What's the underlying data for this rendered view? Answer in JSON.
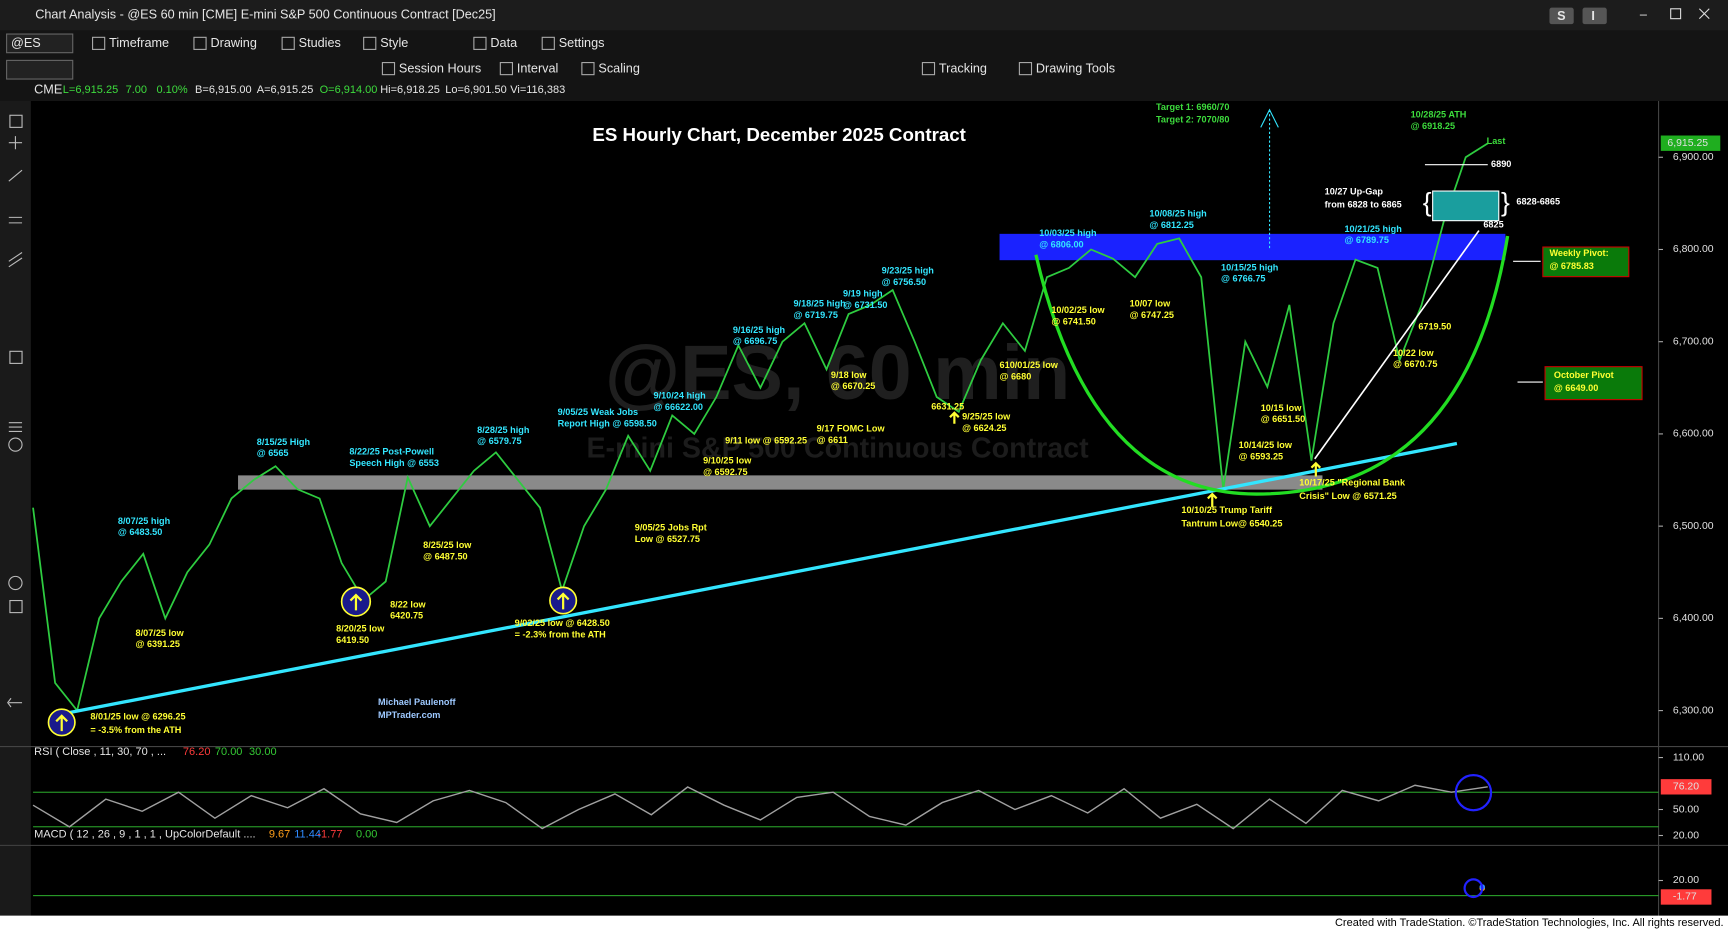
{
  "window": {
    "title": "Chart Analysis - @ES 60 min [CME] E-mini S&P 500 Continuous Contract [Dec25]",
    "buttons": [
      "S",
      "I"
    ]
  },
  "toolbar": {
    "symbol": "@ES",
    "menus": [
      "Timeframe",
      "Drawing",
      "Studies",
      "Style",
      "Data",
      "Settings"
    ],
    "tools": [
      "Session Hours",
      "Interval",
      "Scaling",
      "Tracking",
      "Drawing Tools"
    ]
  },
  "quote": {
    "exchange": "CME",
    "fields": [
      "L=6,915.25",
      "7.00",
      "0.10%",
      "B=6,915.00",
      "A=6,915.25",
      "O=6,914.00",
      "Hi=6,918.25",
      "Lo=6,901.50",
      "Vi=116,383"
    ],
    "field_colors": [
      "#3ddc3d",
      "#3ddc3d",
      "#3ddc3d",
      "#e6e6e6",
      "#e6e6e6",
      "#3ddc3d",
      "#e6e6e6",
      "#e6e6e6",
      "#e6e6e6"
    ]
  },
  "chart": {
    "title": "ES Hourly Chart, December 2025 Contract",
    "watermark": [
      "@ES, 60 min",
      "E-mini S&P 500 Continuous Contract"
    ],
    "ylim": [
      6261,
      6961
    ],
    "yticks": [
      {
        "value": 6300,
        "label": "6,300.00"
      },
      {
        "value": 6400,
        "label": "6,400.00"
      },
      {
        "value": 6500,
        "label": "6,500.00"
      },
      {
        "value": 6600,
        "label": "6,600.00"
      },
      {
        "value": 6700,
        "label": "6,700.00"
      },
      {
        "value": 6800,
        "label": "6,800.00"
      },
      {
        "value": 6900,
        "label": "6,900.00"
      }
    ],
    "last": {
      "value": 6915.25,
      "label": "6,915.25"
    },
    "price": {
      "color": "#2ecc40",
      "values": [
        6520,
        6330,
        6300,
        6400,
        6440,
        6470,
        6400,
        6450,
        6480,
        6530,
        6550,
        6565,
        6540,
        6530,
        6460,
        6420,
        6440,
        6553,
        6500,
        6530,
        6560,
        6580,
        6550,
        6520,
        6430,
        6500,
        6540,
        6598,
        6560,
        6620,
        6600,
        6640,
        6696,
        6650,
        6700,
        6720,
        6670,
        6730,
        6740,
        6756,
        6700,
        6640,
        6624,
        6680,
        6720,
        6690,
        6770,
        6780,
        6800,
        6790,
        6770,
        6806,
        6812,
        6770,
        6540,
        6700,
        6651,
        6740,
        6571,
        6720,
        6789,
        6780,
        6680,
        6740,
        6830,
        6900,
        6915
      ]
    },
    "annotations": [
      {
        "lines": [
          "Target 1: 6960/70",
          "Target 2: 7070/80"
        ],
        "color": "#3ddc3d"
      },
      {
        "lines": [
          "10/28/25 ATH",
          "@ 6918.25"
        ],
        "color": "#3ddc3d"
      },
      {
        "lines": [
          "Last"
        ],
        "color": "#3ddc3d"
      },
      {
        "lines": [
          "6890"
        ],
        "color": "#ffffff"
      },
      {
        "lines": [
          "10/27 Up-Gap",
          "from 6828 to 6865"
        ],
        "color": "#ffffff"
      },
      {
        "lines": [
          "6828-6865"
        ],
        "color": "#ffffff"
      },
      {
        "lines": [
          "6825"
        ],
        "color": "#ffffff"
      },
      {
        "lines": [
          "Weekly Pivot:",
          "@ 6785.83"
        ],
        "color": "#ffff33"
      },
      {
        "lines": [
          "October Pivot",
          "@ 6649.00"
        ],
        "color": "#ffff33"
      },
      {
        "lines": [
          "10/08/25 high",
          "@ 6812.25"
        ],
        "color": "#33e6ff"
      },
      {
        "lines": [
          "10/03/25 high",
          "@ 6806.00"
        ],
        "color": "#33e6ff"
      },
      {
        "lines": [
          "10/21/25 high",
          "@ 6789.75"
        ],
        "color": "#33e6ff"
      },
      {
        "lines": [
          "10/15/25 high",
          "@ 6766.75"
        ],
        "color": "#33e6ff"
      },
      {
        "lines": [
          "10/02/25 low",
          "@ 6741.50"
        ],
        "color": "#ffff33"
      },
      {
        "lines": [
          "10/07 low",
          "@ 6747.25"
        ],
        "color": "#ffff33"
      },
      {
        "lines": [
          "6719.50"
        ],
        "color": "#ffff33"
      },
      {
        "lines": [
          "10/22 low",
          "@ 6670.75"
        ],
        "color": "#ffff33"
      },
      {
        "lines": [
          "610/01/25 low",
          "@ 6680"
        ],
        "color": "#ffff33"
      },
      {
        "lines": [
          "10/15 low",
          "@ 6651.50"
        ],
        "color": "#ffff33"
      },
      {
        "lines": [
          "10/14/25 low",
          "@ 6593.25"
        ],
        "color": "#ffff33"
      },
      {
        "lines": [
          "10/17/25 \"Regional Bank",
          "Crisis\" Low @ 6571.25"
        ],
        "color": "#ffff33"
      },
      {
        "lines": [
          "10/10/25 Trump Tariff",
          "Tantrum Low@ 6540.25"
        ],
        "color": "#ffff33"
      },
      {
        "lines": [
          "9/23/25 high",
          "@ 6756.50"
        ],
        "color": "#33e6ff"
      },
      {
        "lines": [
          "9/19 high",
          "@ 6731.50"
        ],
        "color": "#33e6ff"
      },
      {
        "lines": [
          "9/18/25 high",
          "@ 6719.75"
        ],
        "color": "#33e6ff"
      },
      {
        "lines": [
          "9/16/25 high",
          "@ 6696.75"
        ],
        "color": "#33e6ff"
      },
      {
        "lines": [
          "9/18 low",
          "@ 6670.25"
        ],
        "color": "#ffff33"
      },
      {
        "lines": [
          "6631.25"
        ],
        "color": "#ffff33"
      },
      {
        "lines": [
          "9/25/25 low",
          "@ 6624.25"
        ],
        "color": "#ffff33"
      },
      {
        "lines": [
          "9/10/24 high",
          "@ 66622.00"
        ],
        "color": "#33e6ff"
      },
      {
        "lines": [
          "9/05/25 Weak Jobs",
          "Report High @ 6598.50"
        ],
        "color": "#33e6ff"
      },
      {
        "lines": [
          "9/11 low @ 6592.25"
        ],
        "color": "#ffff33"
      },
      {
        "lines": [
          "9/17 FOMC Low",
          "@ 6611"
        ],
        "color": "#ffff33"
      },
      {
        "lines": [
          "9/10/25 low",
          "@ 6592.75"
        ],
        "color": "#ffff33"
      },
      {
        "lines": [
          "9/05/25 Jobs Rpt",
          "Low @ 6527.75"
        ],
        "color": "#ffff33"
      },
      {
        "lines": [
          "8/28/25 high",
          "@ 6579.75"
        ],
        "color": "#33e6ff"
      },
      {
        "lines": [
          "8/22/25 Post-Powell",
          "Speech High @ 6553"
        ],
        "color": "#33e6ff"
      },
      {
        "lines": [
          "8/15/25 High",
          "@ 6565"
        ],
        "color": "#33e6ff"
      },
      {
        "lines": [
          "8/07/25 high",
          "@ 6483.50"
        ],
        "color": "#33e6ff"
      },
      {
        "lines": [
          "8/25/25 low",
          "@ 6487.50"
        ],
        "color": "#ffff33"
      },
      {
        "lines": [
          "8/22 low",
          "6420.75"
        ],
        "color": "#ffff33"
      },
      {
        "lines": [
          "8/20/25 low",
          "6419.50"
        ],
        "color": "#ffff33"
      },
      {
        "lines": [
          "9/02/25 low @ 6428.50",
          "= -2.3% from the ATH"
        ],
        "color": "#ffff33"
      },
      {
        "lines": [
          "8/07/25 low",
          "@ 6391.25"
        ],
        "color": "#ffff33"
      },
      {
        "lines": [
          "8/01/25 low @ 6296.25",
          "= -3.5% from the ATH"
        ],
        "color": "#ffff33"
      },
      {
        "lines": [
          "Michael Paulenoff",
          "MPTrader.com"
        ],
        "color": "#9ec9ff"
      }
    ]
  },
  "rsi": {
    "label": "RSI ( Close , 11, 30, 70 , ...",
    "color": "#a0a0a0",
    "readings": [
      {
        "value": 76.2,
        "label": "76.20",
        "color": "#ff3b3b"
      },
      {
        "value": 70,
        "label": "70.00",
        "color": "#34c934"
      },
      {
        "value": 30,
        "label": "30.00",
        "color": "#34c934"
      }
    ],
    "ylim": [
      8.6,
      118.9
    ],
    "yticks": [
      {
        "value": 110,
        "label": "110.00"
      },
      {
        "value": 50,
        "label": "50.00"
      },
      {
        "value": 20,
        "label": "20.00"
      }
    ],
    "values": [
      55,
      30,
      62,
      48,
      70,
      40,
      66,
      52,
      74,
      45,
      35,
      60,
      72,
      58,
      28,
      50,
      68,
      44,
      76,
      55,
      38,
      64,
      70,
      42,
      32,
      58,
      72,
      50,
      66,
      46,
      74,
      40,
      56,
      28,
      62,
      34,
      72,
      60,
      78,
      70,
      76.2
    ]
  },
  "macd": {
    "label": "MACD ( 12 , 26 , 9 , 1 , 1 , UpColorDefault ....",
    "readings": [
      {
        "value": 9.67,
        "label": "9.67",
        "color": "#ff9f1a"
      },
      {
        "value": 11.44,
        "label": "11.44",
        "color": "#2f8bff"
      },
      {
        "value": -1.77,
        "label": "-1.77",
        "color": "#ff3b3b"
      },
      {
        "value": 0,
        "label": "0.00",
        "color": "#34c934"
      }
    ],
    "ylim": [
      -20.6,
      63.5
    ],
    "yticks": [
      {
        "value": 20,
        "label": "20.00"
      }
    ]
  },
  "footer": "Created with TradeStation. ©TradeStation Technologies, Inc. All rights reserved."
}
